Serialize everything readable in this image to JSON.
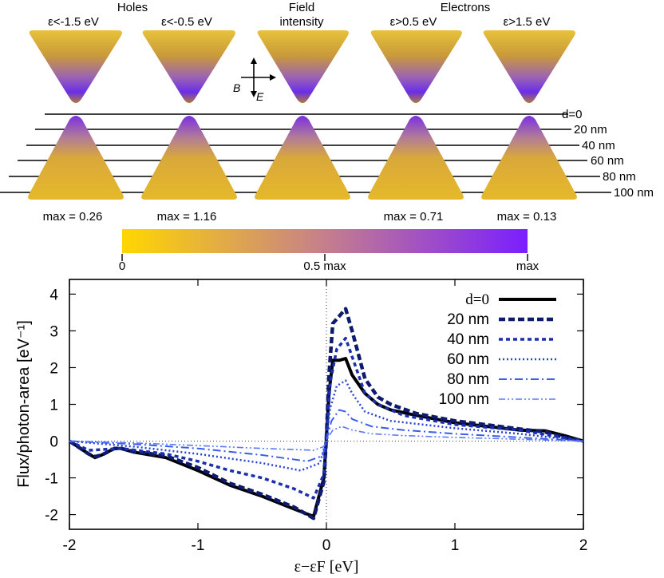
{
  "panel": {
    "group_labels": {
      "holes": "Holes",
      "field": "Field intensity",
      "electrons": "Electrons"
    },
    "energy_labels": [
      "ε<-1.5 eV",
      "ε<-0.5 eV",
      "",
      "ε>0.5 eV",
      "ε>1.5 eV"
    ],
    "field_label_line1": "Field",
    "field_label_line2": "intensity",
    "max_labels": [
      "max = 0.26",
      "max = 1.16",
      "",
      "max = 0.71",
      "max = 0.13"
    ],
    "distance_labels": [
      "d=0",
      "20 nm",
      "40 nm",
      "60 nm",
      "80 nm",
      "100 nm"
    ],
    "axes_glyphs": {
      "B": "B",
      "E": "E"
    },
    "colorbar": {
      "ticks": [
        "0",
        "0.5 max",
        "max"
      ],
      "colors": [
        "#ffd700",
        "#7a1fff"
      ]
    }
  },
  "chart_data": {
    "type": "line",
    "xlabel": "ε−εF [eV]",
    "ylabel": "Flux/photon-area [eV⁻¹]",
    "xlim": [
      -2,
      2
    ],
    "ylim": [
      -2.4,
      4.4
    ],
    "xticks": [
      "-2",
      "-1",
      "0",
      "1",
      "2"
    ],
    "yticks": [
      "-2",
      "-1",
      "0",
      "1",
      "2",
      "3",
      "4"
    ],
    "legend_position": "top-right",
    "series": [
      {
        "name": "d=0",
        "color": "#000000",
        "dash": "solid",
        "x": [
          -2,
          -1.85,
          -1.8,
          -1.75,
          -1.65,
          -1.6,
          -1.5,
          -1.25,
          -1,
          -0.75,
          -0.5,
          -0.25,
          -0.1,
          -0.02,
          0,
          0.02,
          0.05,
          0.1,
          0.15,
          0.2,
          0.3,
          0.4,
          0.5,
          0.7,
          1,
          1.3,
          1.5,
          1.7,
          1.85,
          2
        ],
        "y": [
          0,
          -0.35,
          -0.45,
          -0.38,
          -0.2,
          -0.2,
          -0.3,
          -0.45,
          -0.8,
          -1.2,
          -1.5,
          -1.85,
          -2.05,
          -1.0,
          0.1,
          1.3,
          2.2,
          2.2,
          2.25,
          1.8,
          1.3,
          1.0,
          0.85,
          0.7,
          0.5,
          0.38,
          0.3,
          0.28,
          0.15,
          0
        ]
      },
      {
        "name": "20 nm",
        "color": "#0d1a6e",
        "dash": "heavy",
        "x": [
          -2,
          -1.85,
          -1.8,
          -1.75,
          -1.65,
          -1.6,
          -1.5,
          -1.25,
          -1,
          -0.75,
          -0.5,
          -0.25,
          -0.1,
          -0.02,
          0,
          0.02,
          0.05,
          0.1,
          0.15,
          0.2,
          0.3,
          0.4,
          0.5,
          0.7,
          1,
          1.3,
          1.5,
          1.7,
          1.85,
          2
        ],
        "y": [
          0,
          -0.35,
          -0.42,
          -0.38,
          -0.2,
          -0.2,
          -0.28,
          -0.4,
          -0.72,
          -1.15,
          -1.45,
          -1.8,
          -2.1,
          -1.1,
          0.1,
          1.8,
          3.2,
          3.4,
          3.6,
          3.0,
          1.7,
          1.2,
          1.0,
          0.75,
          0.55,
          0.42,
          0.33,
          0.25,
          0.1,
          0
        ]
      },
      {
        "name": "40 nm",
        "color": "#1a2eb0",
        "dash": "dashed",
        "x": [
          -2,
          -1.85,
          -1.6,
          -1.25,
          -1,
          -0.75,
          -0.5,
          -0.25,
          -0.1,
          -0.02,
          0,
          0.03,
          0.08,
          0.15,
          0.2,
          0.3,
          0.4,
          0.6,
          1,
          1.5,
          2
        ],
        "y": [
          0,
          -0.25,
          -0.2,
          -0.35,
          -0.55,
          -0.8,
          -1.0,
          -1.3,
          -1.55,
          -0.9,
          0.05,
          1.6,
          2.5,
          2.8,
          2.3,
          1.3,
          1.0,
          0.7,
          0.45,
          0.3,
          0
        ]
      },
      {
        "name": "60 nm",
        "color": "#2a43d6",
        "dash": "dotted",
        "x": [
          -2,
          -1.5,
          -1,
          -0.5,
          -0.2,
          -0.05,
          0,
          0.03,
          0.08,
          0.15,
          0.2,
          0.3,
          0.5,
          1,
          1.5,
          2
        ],
        "y": [
          0,
          -0.15,
          -0.35,
          -0.6,
          -0.8,
          -0.6,
          0.05,
          0.9,
          1.5,
          1.65,
          1.3,
          0.8,
          0.55,
          0.35,
          0.2,
          0
        ]
      },
      {
        "name": "80 nm",
        "color": "#3b5cf0",
        "dash": "dashdot",
        "x": [
          -2,
          -1.5,
          -1,
          -0.5,
          -0.15,
          -0.03,
          0,
          0.04,
          0.1,
          0.15,
          0.2,
          0.35,
          0.6,
          1,
          1.5,
          2
        ],
        "y": [
          0,
          -0.08,
          -0.2,
          -0.38,
          -0.55,
          -0.4,
          0.02,
          0.55,
          0.85,
          0.8,
          0.6,
          0.4,
          0.3,
          0.2,
          0.1,
          0
        ]
      },
      {
        "name": "100 nm",
        "color": "#5a7af5",
        "dash": "dashdotdot",
        "x": [
          -2,
          -1.5,
          -1,
          -0.5,
          -0.1,
          -0.02,
          0,
          0.05,
          0.12,
          0.2,
          0.35,
          0.6,
          1,
          1.5,
          2
        ],
        "y": [
          0,
          -0.05,
          -0.12,
          -0.2,
          -0.25,
          -0.15,
          0.02,
          0.3,
          0.4,
          0.3,
          0.2,
          0.15,
          0.1,
          0.05,
          0
        ]
      }
    ]
  }
}
